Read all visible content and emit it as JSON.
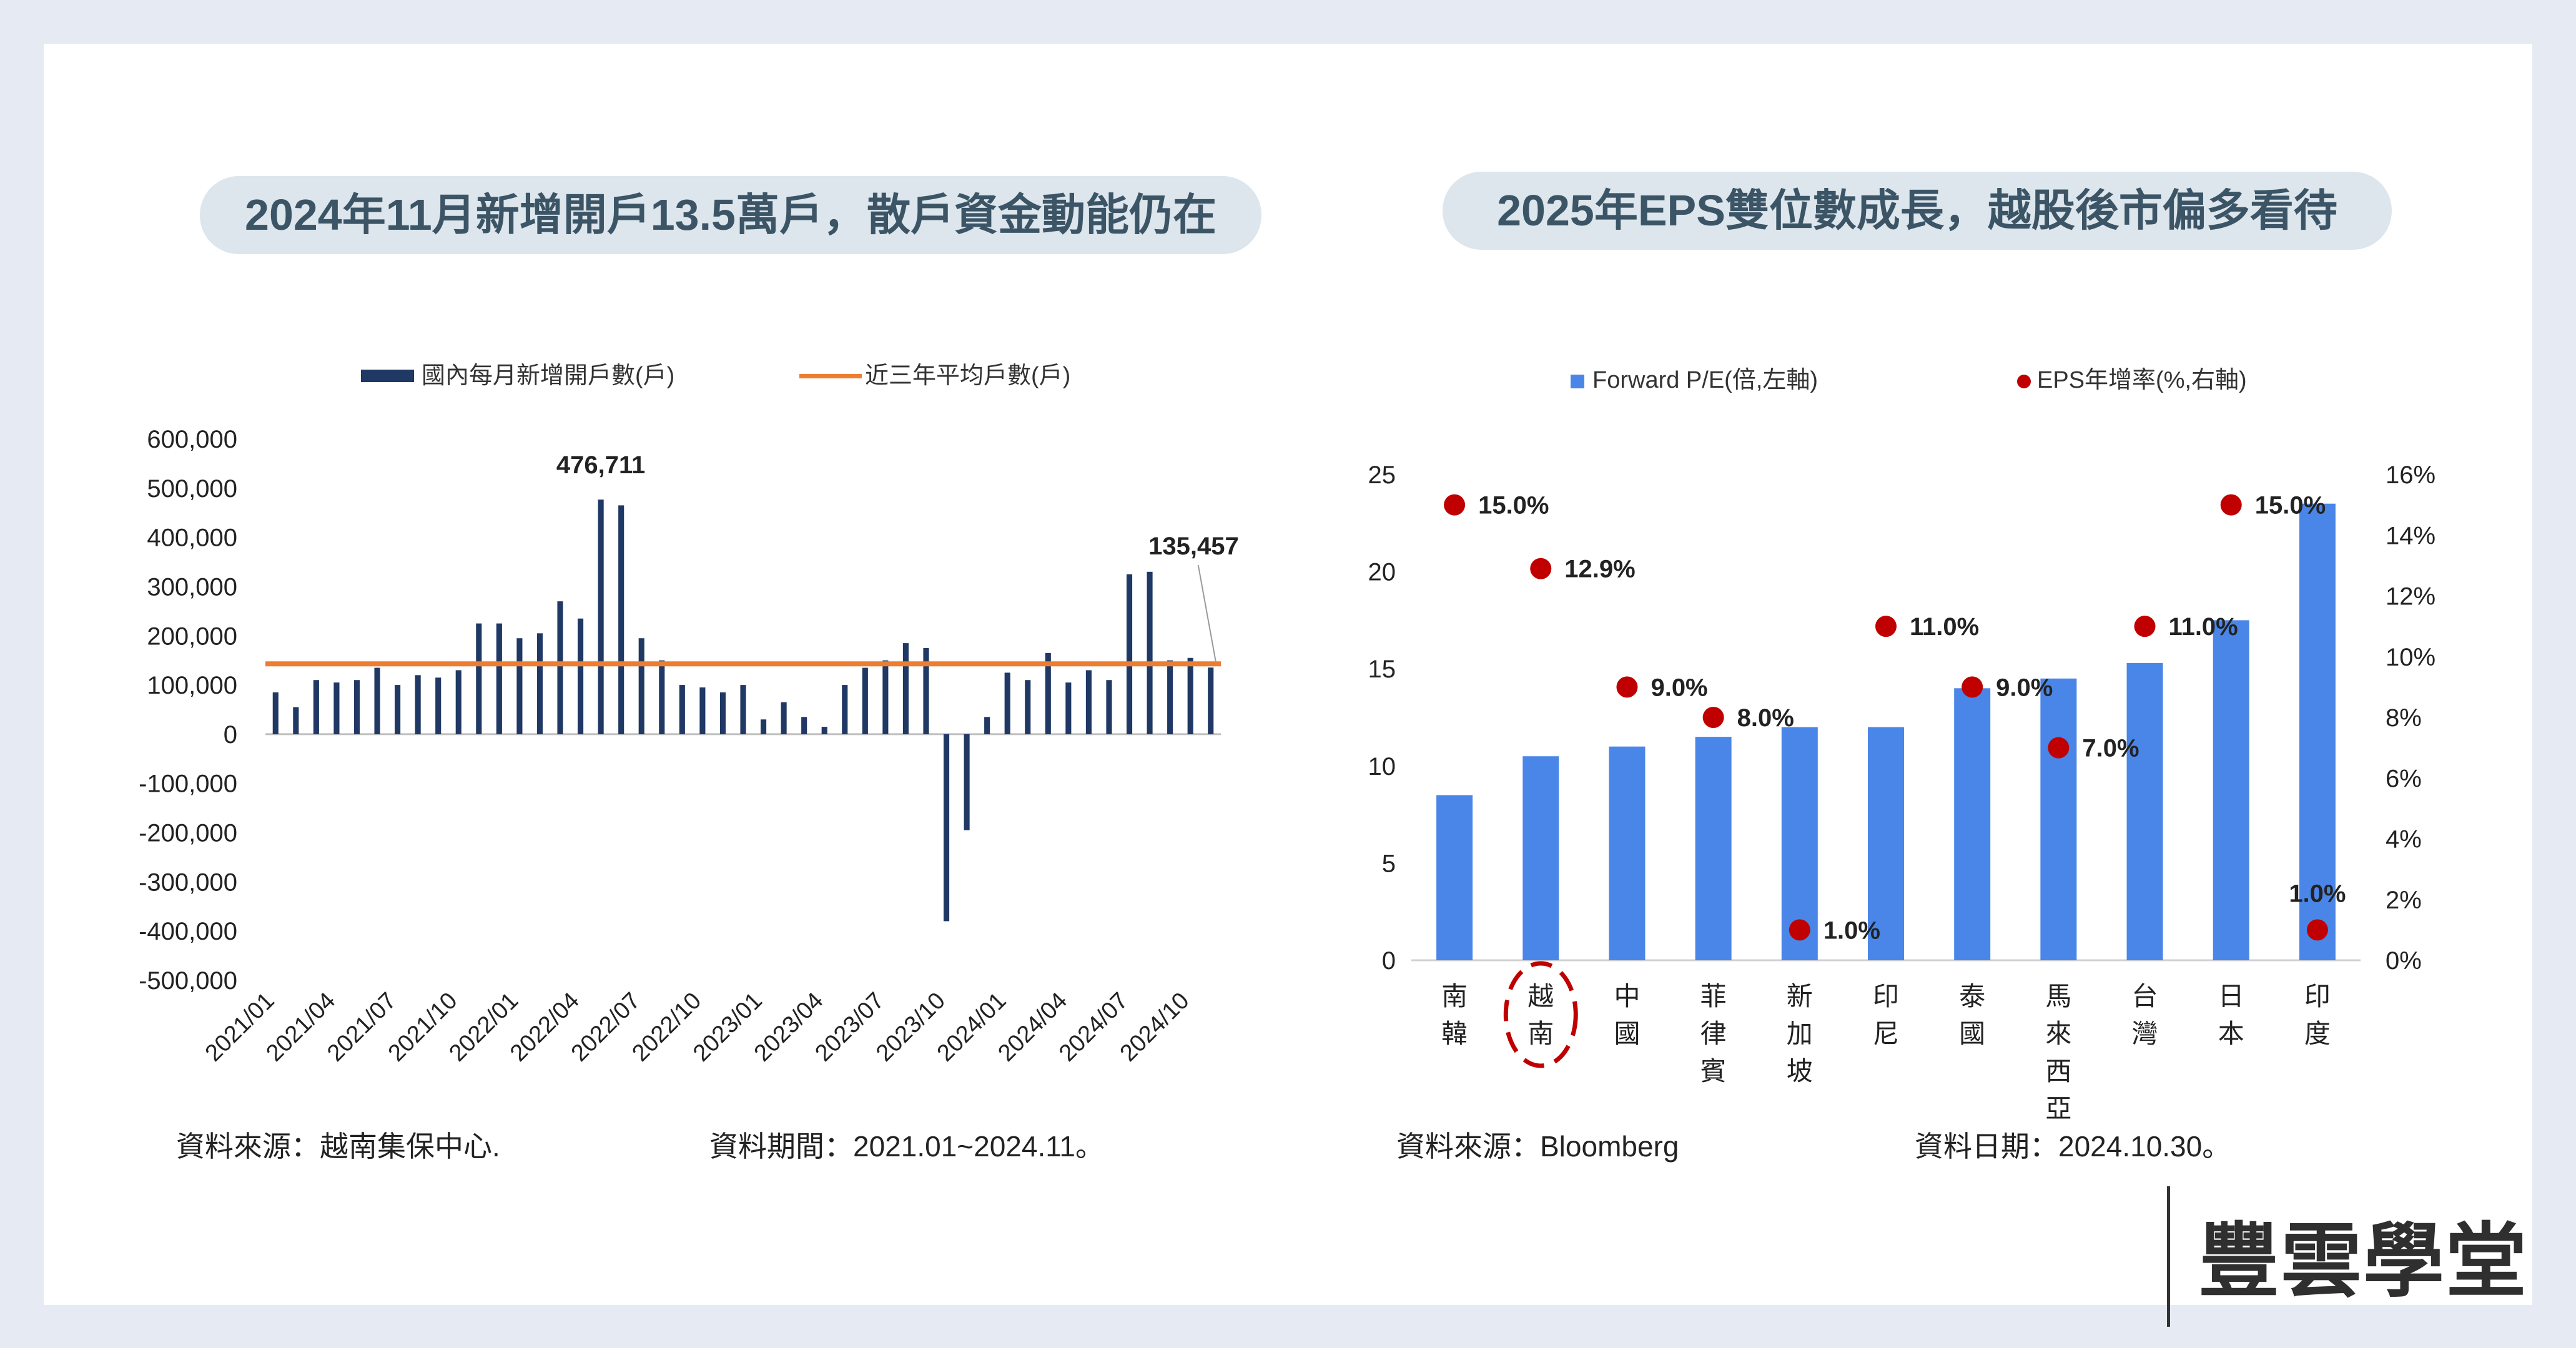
{
  "left": {
    "title": "2024年11月新增開戶13.5萬戶，散戶資金動能仍在",
    "source": "資料來源：越南集保中心.",
    "period": "資料期間：2021.01~2024.11。",
    "chart_data": {
      "type": "bar",
      "legend": [
        "國內每月新增開戶數(戶)",
        "近三年平均戶數(戶)"
      ],
      "categories": [
        "2021/01",
        "2021/02",
        "2021/03",
        "2021/04",
        "2021/05",
        "2021/06",
        "2021/07",
        "2021/08",
        "2021/09",
        "2021/10",
        "2021/11",
        "2021/12",
        "2022/01",
        "2022/02",
        "2022/03",
        "2022/04",
        "2022/05",
        "2022/06",
        "2022/07",
        "2022/08",
        "2022/09",
        "2022/10",
        "2022/11",
        "2022/12",
        "2023/01",
        "2023/02",
        "2023/03",
        "2023/04",
        "2023/05",
        "2023/06",
        "2023/07",
        "2023/08",
        "2023/09",
        "2023/10",
        "2023/11",
        "2023/12",
        "2024/01",
        "2024/02",
        "2024/03",
        "2024/04",
        "2024/05",
        "2024/06",
        "2024/07",
        "2024/08",
        "2024/09",
        "2024/10",
        "2024/11"
      ],
      "x_tick_labels": [
        "2021/01",
        "2021/04",
        "2021/07",
        "2021/10",
        "2022/01",
        "2022/04",
        "2022/07",
        "2022/10",
        "2023/01",
        "2023/04",
        "2023/07",
        "2023/10",
        "2024/01",
        "2024/04",
        "2024/07",
        "2024/10"
      ],
      "values": [
        85000,
        55000,
        110000,
        105000,
        110000,
        135000,
        100000,
        120000,
        115000,
        130000,
        225000,
        225000,
        195000,
        205000,
        270000,
        235000,
        476711,
        465000,
        195000,
        150000,
        100000,
        95000,
        85000,
        100000,
        30000,
        65000,
        35000,
        15000,
        100000,
        135000,
        150000,
        185000,
        175000,
        -380000,
        -195000,
        35000,
        125000,
        110000,
        165000,
        105000,
        130000,
        110000,
        325000,
        330000,
        150000,
        155000,
        135457
      ],
      "average_line": 143000,
      "annotations": [
        {
          "category": "2022/05",
          "text": "476,711"
        },
        {
          "category": "2024/11",
          "text": "135,457"
        }
      ],
      "y_tick_labels": [
        "600,000",
        "500,000",
        "400,000",
        "300,000",
        "200,000",
        "100,000",
        "0",
        "-100,000",
        "-200,000",
        "-300,000",
        "-400,000",
        "-500,000"
      ],
      "ylim": [
        -500000,
        600000
      ],
      "bar_color": "#1f3864",
      "line_color": "#ed7d31"
    }
  },
  "right": {
    "title": "2025年EPS雙位數成長，越股後市偏多看待",
    "source": "資料來源：Bloomberg",
    "date": "資料日期：2024.10.30。",
    "chart_data": {
      "type": "bar",
      "legend": [
        "Forward P/E(倍,左軸)",
        "EPS年增率(%,右軸)"
      ],
      "categories": [
        "南韓",
        "越南",
        "中國",
        "菲律賓",
        "新加坡",
        "印尼",
        "泰國",
        "馬來西亞",
        "台灣",
        "日本",
        "印度"
      ],
      "series": [
        {
          "name": "Forward P/E(倍,左軸)",
          "axis": "left",
          "values": [
            8.5,
            10.5,
            11.0,
            11.5,
            12.0,
            12.0,
            14.0,
            14.5,
            15.3,
            17.5,
            23.5
          ]
        },
        {
          "name": "EPS年增率(%,右軸)",
          "axis": "right",
          "values": [
            15.0,
            12.9,
            9.0,
            8.0,
            1.0,
            11.0,
            9.0,
            7.0,
            11.0,
            15.0,
            1.0
          ],
          "labels": [
            "15.0%",
            "12.9%",
            "9.0%",
            "8.0%",
            "1.0%",
            "11.0%",
            "9.0%",
            "7.0%",
            "11.0%",
            "15.0%",
            "1.0%"
          ]
        }
      ],
      "y_left_ticks": [
        "25",
        "20",
        "15",
        "10",
        "5",
        "0"
      ],
      "y_right_ticks": [
        "16%",
        "14%",
        "12%",
        "10%",
        "8%",
        "6%",
        "4%",
        "2%",
        "0%"
      ],
      "ylim_left": [
        0,
        25
      ],
      "ylim_right": [
        0,
        16
      ],
      "highlight": "越南",
      "bar_color": "#4a86e8",
      "dot_color": "#c00000"
    }
  },
  "logo": {
    "text": "豐雲學堂"
  }
}
